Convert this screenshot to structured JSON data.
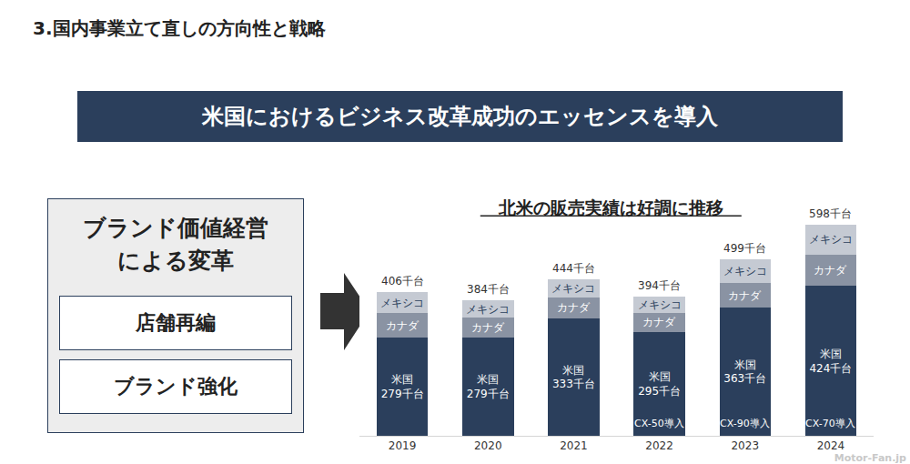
{
  "header": {
    "title": "3.国内事業立て直しの方向性と戦略"
  },
  "banner": "米国におけるビジネス改革成功のエッセンスを導入",
  "left_panel": {
    "title_lines": [
      "ブランド価値経営",
      "による変革"
    ],
    "items": [
      "店舗再編",
      "ブランド強化"
    ]
  },
  "chart_data": {
    "type": "bar",
    "title": "北米の販売実績は好調に推移",
    "categories": [
      "2019",
      "2020",
      "2021",
      "2022",
      "2023",
      "2024"
    ],
    "stacked": true,
    "data_labels": true,
    "grid": false,
    "tick_labels": "x",
    "ylim": [
      0,
      616
    ],
    "series": [
      {
        "name": "米国",
        "color": "#2b3f5c",
        "values": [
          279,
          279,
          333,
          295,
          363,
          424
        ],
        "value_labels": [
          "279千台",
          "279千台",
          "333千台",
          "295千台",
          "363千台",
          "424千台"
        ]
      },
      {
        "name": "カナダ",
        "color": "#8a93a3",
        "values": [
          68,
          55,
          60,
          52,
          70,
          90
        ]
      },
      {
        "name": "メキシコ",
        "color": "#c5cad3",
        "values": [
          59,
          50,
          51,
          47,
          66,
          84
        ]
      }
    ],
    "totals": {
      "values": [
        406,
        384,
        444,
        394,
        499,
        598
      ],
      "value_labels": [
        "406千台",
        "384千台",
        "444千台",
        "394千台",
        "499千台",
        "598千台"
      ]
    },
    "annotations": [
      {
        "category": "2022",
        "text": "CX-50導入"
      },
      {
        "category": "2023",
        "text": "CX-90導入"
      },
      {
        "category": "2024",
        "text": "CX-70導入"
      }
    ]
  },
  "watermark": "Motor-Fan.jp"
}
